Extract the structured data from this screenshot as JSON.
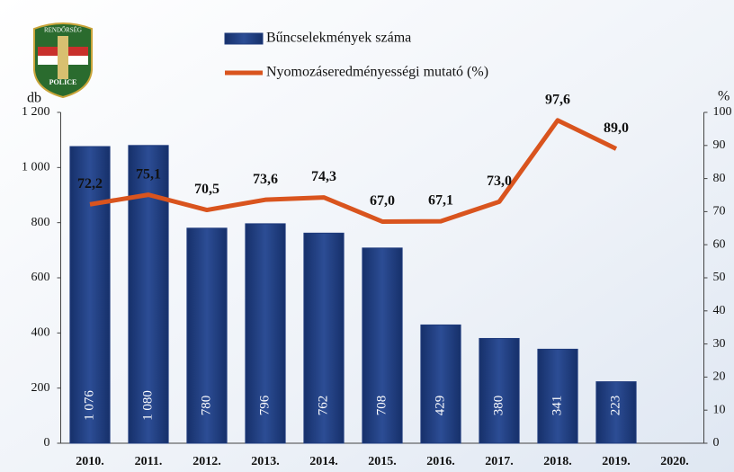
{
  "chart_data": {
    "type": "bar-line",
    "logo_texts": [
      "RENDŐRSÉG",
      "POLICE"
    ],
    "y_label": "db",
    "y2_label": "%",
    "categories": [
      "2010.",
      "2011.",
      "2012.",
      "2013.",
      "2014.",
      "2015.",
      "2016.",
      "2017.",
      "2018.",
      "2019.",
      "2020."
    ],
    "series": [
      {
        "name": "Bűncselekmények száma",
        "type": "bar",
        "color": "#1f3b7c",
        "values": [
          1076,
          1080,
          780,
          796,
          762,
          708,
          429,
          380,
          341,
          223,
          null
        ],
        "value_labels": [
          "1 076",
          "1 080",
          "780",
          "796",
          "762",
          "708",
          "429",
          "380",
          "341",
          "223",
          null
        ]
      },
      {
        "name": "Nyomozáseredményességi mutató (%)",
        "type": "line",
        "color": "#d9541e",
        "axis": "y2",
        "values": [
          72.2,
          75.1,
          70.5,
          73.6,
          74.3,
          67.0,
          67.1,
          73.0,
          97.6,
          89.0,
          null
        ],
        "value_labels": [
          "72,2",
          "75,1",
          "70,5",
          "73,6",
          "74,3",
          "67,0",
          "67,1",
          "73,0",
          "97,6",
          "89,0",
          null
        ]
      }
    ],
    "ylim": [
      0,
      1200
    ],
    "yticks": [
      0,
      200,
      400,
      600,
      800,
      {
        "value": 1000,
        "label": "1 000"
      },
      {
        "value": 1200,
        "label": "1 200"
      }
    ],
    "y2lim": [
      0,
      100
    ],
    "y2ticks": [
      0,
      10,
      20,
      30,
      40,
      50,
      60,
      70,
      80,
      90,
      100
    ],
    "grid": false
  }
}
